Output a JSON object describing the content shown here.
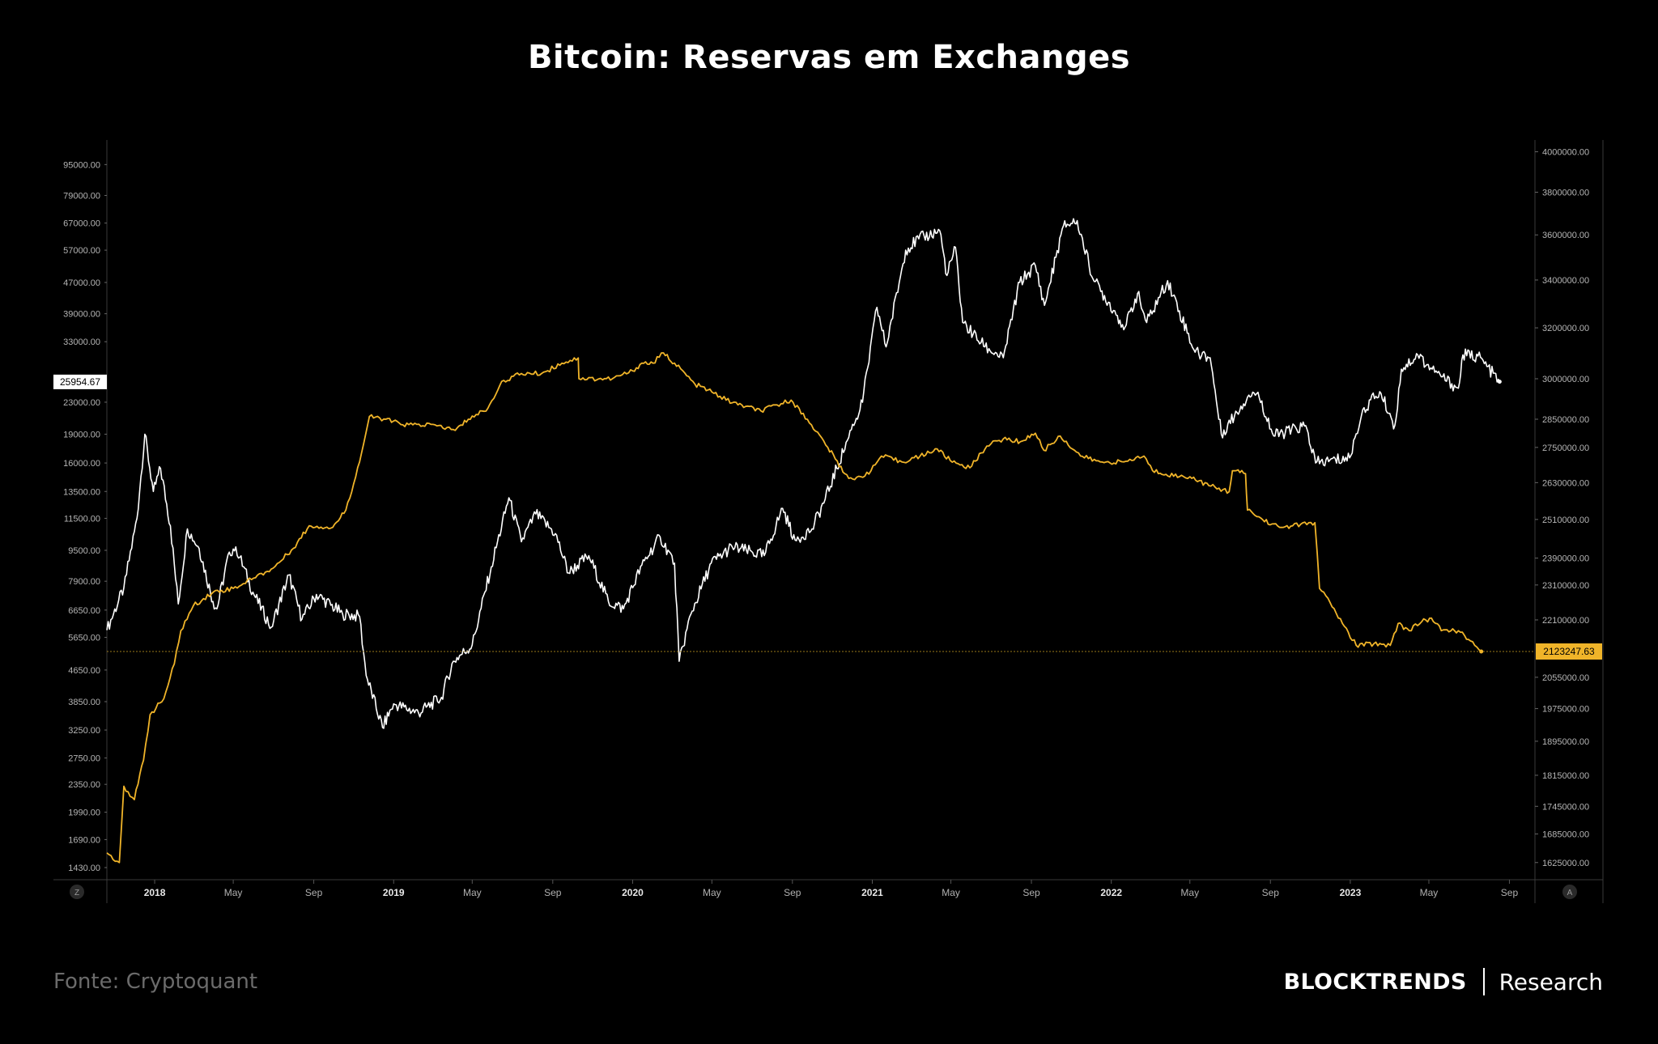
{
  "title": "Bitcoin: Reservas em Exchanges",
  "source": "Fonte: Cryptoquant",
  "brand": {
    "name": "BLOCKTRENDS",
    "suffix": "Research"
  },
  "colors": {
    "background": "#000000",
    "price": "#ffffff",
    "reserve": "#f0b429",
    "axis": "#3a3a3a"
  },
  "chart_data": {
    "type": "line",
    "title": "Bitcoin: Reservas em Exchanges",
    "y_left": {
      "scale": "log",
      "range": [
        1330,
        110000
      ],
      "ticks": [
        "95000.00",
        "79000.00",
        "67000.00",
        "57000.00",
        "47000.00",
        "39000.00",
        "33000.00",
        "23000.00",
        "19000.00",
        "16000.00",
        "13500.00",
        "11500.00",
        "9500.00",
        "7900.00",
        "6650.00",
        "5650.00",
        "4650.00",
        "3850.00",
        "3250.00",
        "2750.00",
        "2350.00",
        "1990.00",
        "1690.00",
        "1430.00"
      ],
      "current_label": "25954.67"
    },
    "y_right": {
      "scale": "log",
      "range": [
        1590000,
        4060000
      ],
      "ticks": [
        "4000000.00",
        "3800000.00",
        "3600000.00",
        "3400000.00",
        "3200000.00",
        "3000000.00",
        "2850000.00",
        "2750000.00",
        "2630000.00",
        "2510000.00",
        "2390000.00",
        "2310000.00",
        "2210000.00",
        "2055000.00",
        "1975000.00",
        "1895000.00",
        "1815000.00",
        "1745000.00",
        "1685000.00",
        "1625000.00"
      ],
      "current_label": "2123247.63"
    },
    "x_range": [
      "2017-10-20",
      "2023-10-10"
    ],
    "x_ticks": [
      {
        "date": "2018-01-01",
        "label": "2018",
        "bold": true
      },
      {
        "date": "2018-05-01",
        "label": "May",
        "bold": false
      },
      {
        "date": "2018-09-01",
        "label": "Sep",
        "bold": false
      },
      {
        "date": "2019-01-01",
        "label": "2019",
        "bold": true
      },
      {
        "date": "2019-05-01",
        "label": "May",
        "bold": false
      },
      {
        "date": "2019-09-01",
        "label": "Sep",
        "bold": false
      },
      {
        "date": "2020-01-01",
        "label": "2020",
        "bold": true
      },
      {
        "date": "2020-05-01",
        "label": "May",
        "bold": false
      },
      {
        "date": "2020-09-01",
        "label": "Sep",
        "bold": false
      },
      {
        "date": "2021-01-01",
        "label": "2021",
        "bold": true
      },
      {
        "date": "2021-05-01",
        "label": "May",
        "bold": false
      },
      {
        "date": "2021-09-01",
        "label": "Sep",
        "bold": false
      },
      {
        "date": "2022-01-01",
        "label": "2022",
        "bold": true
      },
      {
        "date": "2022-05-01",
        "label": "May",
        "bold": false
      },
      {
        "date": "2022-09-01",
        "label": "Sep",
        "bold": false
      },
      {
        "date": "2023-01-01",
        "label": "2023",
        "bold": true
      },
      {
        "date": "2023-05-01",
        "label": "May",
        "bold": false
      },
      {
        "date": "2023-09-01",
        "label": "Sep",
        "bold": false
      }
    ],
    "corner_left": "Z",
    "corner_right": "A",
    "series": [
      {
        "axis": "left",
        "color": "#ffffff",
        "points": [
          [
            "2017-10-20",
            5900
          ],
          [
            "2017-11-15",
            7600
          ],
          [
            "2017-12-05",
            11500
          ],
          [
            "2017-12-17",
            19000
          ],
          [
            "2017-12-30",
            13500
          ],
          [
            "2018-01-10",
            15500
          ],
          [
            "2018-01-25",
            11000
          ],
          [
            "2018-02-06",
            6900
          ],
          [
            "2018-02-20",
            10800
          ],
          [
            "2018-03-10",
            9600
          ],
          [
            "2018-03-31",
            7000
          ],
          [
            "2018-04-06",
            6700
          ],
          [
            "2018-04-25",
            9400
          ],
          [
            "2018-05-05",
            9700
          ],
          [
            "2018-05-31",
            7400
          ],
          [
            "2018-06-28",
            6000
          ],
          [
            "2018-07-25",
            8200
          ],
          [
            "2018-08-14",
            6300
          ],
          [
            "2018-09-05",
            7300
          ],
          [
            "2018-10-15",
            6500
          ],
          [
            "2018-11-10",
            6400
          ],
          [
            "2018-11-20",
            4500
          ],
          [
            "2018-12-15",
            3300
          ],
          [
            "2019-01-01",
            3800
          ],
          [
            "2019-02-08",
            3600
          ],
          [
            "2019-03-15",
            3950
          ],
          [
            "2019-04-02",
            4900
          ],
          [
            "2019-05-01",
            5400
          ],
          [
            "2019-05-30",
            8600
          ],
          [
            "2019-06-26",
            13000
          ],
          [
            "2019-07-15",
            10000
          ],
          [
            "2019-08-06",
            11800
          ],
          [
            "2019-09-05",
            10500
          ],
          [
            "2019-09-25",
            8300
          ],
          [
            "2019-10-26",
            9200
          ],
          [
            "2019-11-25",
            7000
          ],
          [
            "2019-12-18",
            6700
          ],
          [
            "2020-01-15",
            8700
          ],
          [
            "2020-02-12",
            10300
          ],
          [
            "2020-03-05",
            8800
          ],
          [
            "2020-03-12",
            4900
          ],
          [
            "2020-03-30",
            6500
          ],
          [
            "2020-04-30",
            8800
          ],
          [
            "2020-06-01",
            9700
          ],
          [
            "2020-07-20",
            9200
          ],
          [
            "2020-08-17",
            12200
          ],
          [
            "2020-09-05",
            10100
          ],
          [
            "2020-10-01",
            10800
          ],
          [
            "2020-10-21",
            12900
          ],
          [
            "2020-11-30",
            19500
          ],
          [
            "2020-12-17",
            23000
          ],
          [
            "2021-01-08",
            40500
          ],
          [
            "2021-01-22",
            32000
          ],
          [
            "2021-02-21",
            57000
          ],
          [
            "2021-03-13",
            61000
          ],
          [
            "2021-04-14",
            64000
          ],
          [
            "2021-04-25",
            49000
          ],
          [
            "2021-05-08",
            58000
          ],
          [
            "2021-05-19",
            37000
          ],
          [
            "2021-06-22",
            32000
          ],
          [
            "2021-07-20",
            30000
          ],
          [
            "2021-08-14",
            47000
          ],
          [
            "2021-09-07",
            52000
          ],
          [
            "2021-09-21",
            41000
          ],
          [
            "2021-10-20",
            66000
          ],
          [
            "2021-11-10",
            68000
          ],
          [
            "2021-12-04",
            48000
          ],
          [
            "2022-01-22",
            36000
          ],
          [
            "2022-02-10",
            44000
          ],
          [
            "2022-02-24",
            37000
          ],
          [
            "2022-03-28",
            47500
          ],
          [
            "2022-05-09",
            31000
          ],
          [
            "2022-06-01",
            30000
          ],
          [
            "2022-06-18",
            19000
          ],
          [
            "2022-07-30",
            24000
          ],
          [
            "2022-08-13",
            24400
          ],
          [
            "2022-09-06",
            18800
          ],
          [
            "2022-10-25",
            20000
          ],
          [
            "2022-11-09",
            16000
          ],
          [
            "2022-12-31",
            16500
          ],
          [
            "2023-01-20",
            22000
          ],
          [
            "2023-02-15",
            24500
          ],
          [
            "2023-03-10",
            20000
          ],
          [
            "2023-03-20",
            28000
          ],
          [
            "2023-04-14",
            30500
          ],
          [
            "2023-05-10",
            27500
          ],
          [
            "2023-06-15",
            25000
          ],
          [
            "2023-06-22",
            30500
          ],
          [
            "2023-07-15",
            30300
          ],
          [
            "2023-08-17",
            26000
          ]
        ]
      },
      {
        "axis": "right",
        "color": "#f0b429",
        "points": [
          [
            "2017-10-20",
            1645000
          ],
          [
            "2017-11-08",
            1625000
          ],
          [
            "2017-11-15",
            1790000
          ],
          [
            "2017-12-01",
            1760000
          ],
          [
            "2017-12-15",
            1850000
          ],
          [
            "2017-12-25",
            1960000
          ],
          [
            "2018-01-15",
            2000000
          ],
          [
            "2018-01-31",
            2090000
          ],
          [
            "2018-02-10",
            2180000
          ],
          [
            "2018-03-01",
            2250000
          ],
          [
            "2018-04-01",
            2290000
          ],
          [
            "2018-05-01",
            2300000
          ],
          [
            "2018-06-01",
            2330000
          ],
          [
            "2018-07-01",
            2360000
          ],
          [
            "2018-08-01",
            2420000
          ],
          [
            "2018-08-25",
            2490000
          ],
          [
            "2018-09-30",
            2485000
          ],
          [
            "2018-10-20",
            2540000
          ],
          [
            "2018-11-10",
            2700000
          ],
          [
            "2018-11-25",
            2860000
          ],
          [
            "2018-12-20",
            2850000
          ],
          [
            "2019-01-15",
            2830000
          ],
          [
            "2019-03-05",
            2830000
          ],
          [
            "2019-04-05",
            2810000
          ],
          [
            "2019-04-25",
            2850000
          ],
          [
            "2019-05-25",
            2890000
          ],
          [
            "2019-06-15",
            2990000
          ],
          [
            "2019-07-15",
            3020000
          ],
          [
            "2019-08-15",
            3020000
          ],
          [
            "2019-09-15",
            3060000
          ],
          [
            "2019-10-10",
            3080000
          ],
          [
            "2019-10-11",
            3000000
          ],
          [
            "2019-12-01",
            3000000
          ],
          [
            "2020-01-01",
            3030000
          ],
          [
            "2020-01-15",
            3060000
          ],
          [
            "2020-02-01",
            3060000
          ],
          [
            "2020-02-17",
            3100000
          ],
          [
            "2020-03-05",
            3060000
          ],
          [
            "2020-04-05",
            2980000
          ],
          [
            "2020-05-01",
            2950000
          ],
          [
            "2020-06-01",
            2910000
          ],
          [
            "2020-07-15",
            2880000
          ],
          [
            "2020-08-30",
            2920000
          ],
          [
            "2020-09-30",
            2830000
          ],
          [
            "2020-10-25",
            2750000
          ],
          [
            "2020-11-20",
            2660000
          ],
          [
            "2020-12-05",
            2640000
          ],
          [
            "2020-12-30",
            2670000
          ],
          [
            "2021-01-15",
            2720000
          ],
          [
            "2021-02-15",
            2700000
          ],
          [
            "2021-03-15",
            2720000
          ],
          [
            "2021-04-10",
            2745000
          ],
          [
            "2021-04-30",
            2705000
          ],
          [
            "2021-05-30",
            2680000
          ],
          [
            "2021-06-25",
            2755000
          ],
          [
            "2021-07-20",
            2780000
          ],
          [
            "2021-08-15",
            2770000
          ],
          [
            "2021-09-07",
            2800000
          ],
          [
            "2021-09-20",
            2740000
          ],
          [
            "2021-10-15",
            2790000
          ],
          [
            "2021-11-15",
            2720000
          ],
          [
            "2021-12-15",
            2700000
          ],
          [
            "2022-01-20",
            2700000
          ],
          [
            "2022-02-20",
            2720000
          ],
          [
            "2022-03-05",
            2670000
          ],
          [
            "2022-04-15",
            2650000
          ],
          [
            "2022-05-01",
            2650000
          ],
          [
            "2022-05-30",
            2620000
          ],
          [
            "2022-06-30",
            2600000
          ],
          [
            "2022-07-05",
            2670000
          ],
          [
            "2022-07-25",
            2660000
          ],
          [
            "2022-07-28",
            2540000
          ],
          [
            "2022-08-20",
            2510000
          ],
          [
            "2022-09-15",
            2485000
          ],
          [
            "2022-10-05",
            2490000
          ],
          [
            "2022-11-08",
            2500000
          ],
          [
            "2022-11-15",
            2300000
          ],
          [
            "2022-12-01",
            2260000
          ],
          [
            "2022-12-20",
            2200000
          ],
          [
            "2023-01-10",
            2140000
          ],
          [
            "2023-02-15",
            2145000
          ],
          [
            "2023-03-03",
            2140000
          ],
          [
            "2023-03-15",
            2200000
          ],
          [
            "2023-04-01",
            2180000
          ],
          [
            "2023-04-20",
            2205000
          ],
          [
            "2023-05-05",
            2215000
          ],
          [
            "2023-05-20",
            2180000
          ],
          [
            "2023-06-15",
            2180000
          ],
          [
            "2023-07-10",
            2140000
          ],
          [
            "2023-07-20",
            2123247
          ]
        ]
      }
    ]
  }
}
